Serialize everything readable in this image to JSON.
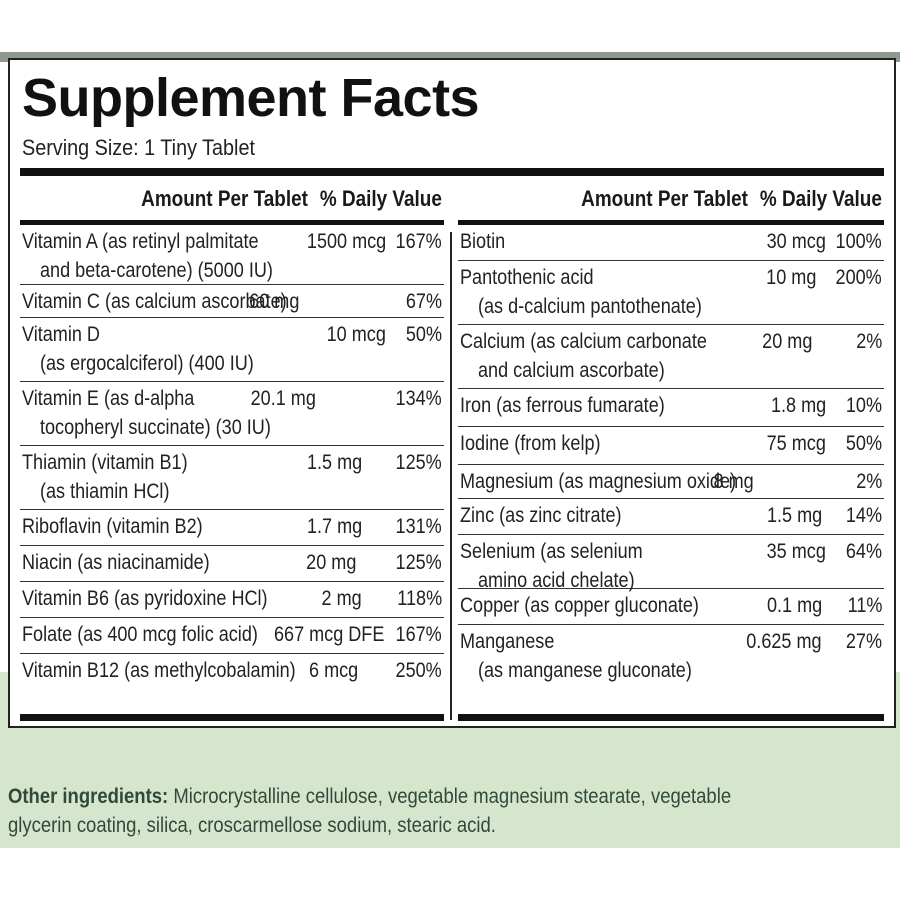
{
  "label": {
    "title": "Supplement Facts",
    "serving_size": "Serving Size: 1 Tiny Tablet",
    "header_amount": "Amount Per Tablet",
    "header_dv": "% Daily Value"
  },
  "left_rows": [
    {
      "name": "Vitamin A (as retinyl palmitate",
      "name2": "and beta-carotene) (5000 IU)",
      "amount": "1500 mcg",
      "dv": "167%"
    },
    {
      "name": "Vitamin C (as calcium ascorbate)",
      "name2": "",
      "amount": "60 mg",
      "dv": "67%"
    },
    {
      "name": "Vitamin D",
      "name2": "(as ergocalciferol) (400 IU)",
      "amount": "10 mcg",
      "dv": "50%"
    },
    {
      "name": "Vitamin E (as d-alpha",
      "name2": "tocopheryl succinate) (30 IU)",
      "amount": "20.1 mg",
      "dv": "134%"
    },
    {
      "name": "Thiamin (vitamin B1)",
      "name2": "(as thiamin HCl)",
      "amount": "1.5 mg",
      "dv": "125%"
    },
    {
      "name": "Riboflavin (vitamin B2)",
      "name2": "",
      "amount": "1.7 mg",
      "dv": "131%"
    },
    {
      "name": "Niacin (as niacinamide)",
      "name2": "",
      "amount": "20 mg",
      "dv": "125%"
    },
    {
      "name": "Vitamin B6 (as pyridoxine HCl)",
      "name2": "",
      "amount": "2 mg",
      "dv": "118%"
    },
    {
      "name": "Folate (as 400 mcg folic acid)",
      "name2": "",
      "amount": "667 mcg DFE",
      "dv": "167%"
    },
    {
      "name": "Vitamin B12 (as methylcobalamin)",
      "name2": "",
      "amount": "6 mcg",
      "dv": "250%"
    }
  ],
  "right_rows": [
    {
      "name": "Biotin",
      "name2": "",
      "amount": "30 mcg",
      "dv": "100%"
    },
    {
      "name": "Pantothenic acid",
      "name2": "(as d-calcium pantothenate)",
      "amount": "10 mg",
      "dv": "200%"
    },
    {
      "name": "Calcium (as calcium carbonate",
      "name2": "and calcium ascorbate)",
      "amount": "20 mg",
      "dv": "2%"
    },
    {
      "name": "Iron (as ferrous fumarate)",
      "name2": "",
      "amount": "1.8 mg",
      "dv": "10%"
    },
    {
      "name": "Iodine (from kelp)",
      "name2": "",
      "amount": "75 mcg",
      "dv": "50%"
    },
    {
      "name": "Magnesium (as magnesium oxide)",
      "name2": "",
      "amount": "8 mg",
      "dv": "2%"
    },
    {
      "name": "Zinc (as zinc citrate)",
      "name2": "",
      "amount": "1.5 mg",
      "dv": "14%"
    },
    {
      "name": "Selenium (as selenium",
      "name2": "amino acid chelate)",
      "amount": "35 mcg",
      "dv": "64%"
    },
    {
      "name": "Copper (as copper gluconate)",
      "name2": "",
      "amount": "0.1 mg",
      "dv": "11%"
    },
    {
      "name": "Manganese",
      "name2": "(as manganese gluconate)",
      "amount": "0.625 mg",
      "dv": "27%"
    }
  ],
  "other_ingredients": {
    "label": "Other ingredients:",
    "text": "Microcrystalline cellulose, vegetable magnesium stearate, vegetable glycerin coating, silica, croscarmellose sodium, stearic acid."
  },
  "colors": {
    "panel_border": "#222222",
    "footer_background": "#d6e6cd",
    "footer_text": "#2f4a3a"
  }
}
